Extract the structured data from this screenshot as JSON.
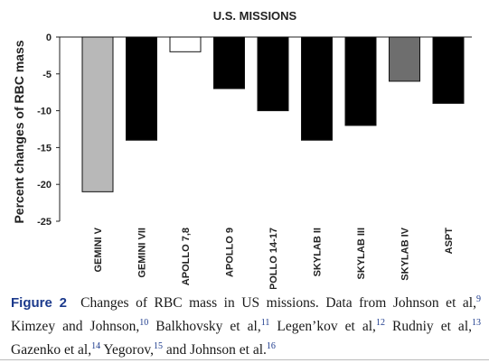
{
  "chart_data": {
    "type": "bar",
    "title": "U.S. MISSIONS",
    "ylabel": "Percent changes of RBC mass",
    "xlabel": "",
    "categories": [
      "GEMINI V",
      "GEMINI VII",
      "APOLLO 7,8",
      "APOLLO 9",
      "APOLLO 14-17",
      "SKYLAB II",
      "SKYLAB III",
      "SKYLAB IV",
      "ASPT"
    ],
    "values": [
      -21,
      -14,
      -2,
      -7,
      -10,
      -14,
      -12,
      -6,
      -9
    ],
    "bar_colors": [
      "#b8b8b8",
      "#000000",
      "#ffffff",
      "#000000",
      "#000000",
      "#000000",
      "#000000",
      "#6e6e6e",
      "#000000"
    ],
    "ylim": [
      -25,
      0
    ],
    "yticks": [
      "0",
      "-5",
      "-10",
      "-15",
      "-20",
      "-25"
    ],
    "grid": false,
    "legend": "none"
  },
  "caption": {
    "label": "Figure 2",
    "parts": [
      {
        "t": "Changes of RBC mass in US missions. Data from Johnson et al,",
        "s": "9"
      },
      {
        "t": " Kimzey and Johnson,",
        "s": "10"
      },
      {
        "t": " Balkhovsky et al,",
        "s": "11"
      },
      {
        "t": " Legen’kov et al,",
        "s": "12"
      },
      {
        "t": " Rudniy et al,",
        "s": "13"
      },
      {
        "t": " Gazenko et al,",
        "s": "14"
      },
      {
        "t": " Yegorov,",
        "s": "15"
      },
      {
        "t": " and Johnson et al.",
        "s": "16"
      }
    ]
  }
}
